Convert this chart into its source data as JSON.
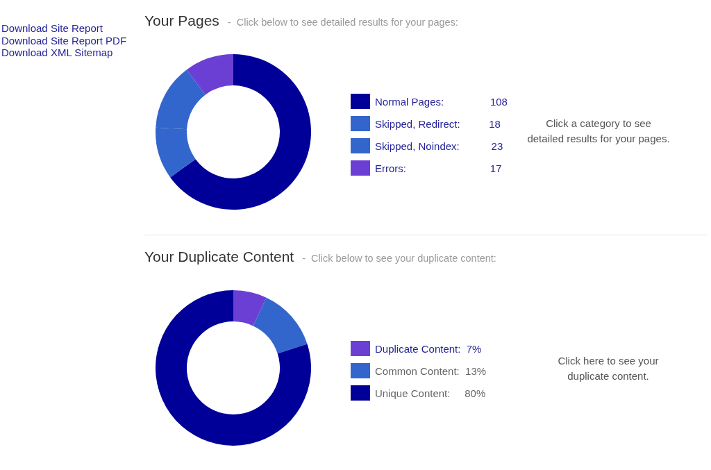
{
  "chart_data": [
    {
      "type": "other",
      "annotations": [
        "Download Site Report",
        "Download Site Report PDF",
        "Download XML Sitemap"
      ]
    },
    {
      "type": "donut",
      "title": "Your Pages",
      "subtitle": "-  Click below to see detailed results for your pages:",
      "categories": [
        "Normal Pages",
        "Skipped, Redirect",
        "Skipped, Noindex",
        "Errors"
      ],
      "values": [
        108,
        18,
        23,
        17
      ],
      "colors": [
        "#000099",
        "#3366cc",
        "#3366cc",
        "#6c3fd4"
      ],
      "legend": "right",
      "value_labels": [
        "108",
        "18",
        "23",
        "17"
      ],
      "annotations": [
        "Click a category to see\ndetailed results for your pages."
      ]
    },
    {
      "type": "donut",
      "title": "Your Duplicate Content",
      "subtitle": "-  Click below to see your duplicate content:",
      "categories": [
        "Duplicate Content",
        "Common Content",
        "Unique Content"
      ],
      "values": [
        7,
        13,
        80
      ],
      "colors": [
        "#6c3fd4",
        "#3366cc",
        "#000099"
      ],
      "legend": "right",
      "value_labels": [
        "7%",
        "13%",
        "80%"
      ],
      "annotations": [
        "Click here to see your\nduplicate content."
      ]
    }
  ]
}
